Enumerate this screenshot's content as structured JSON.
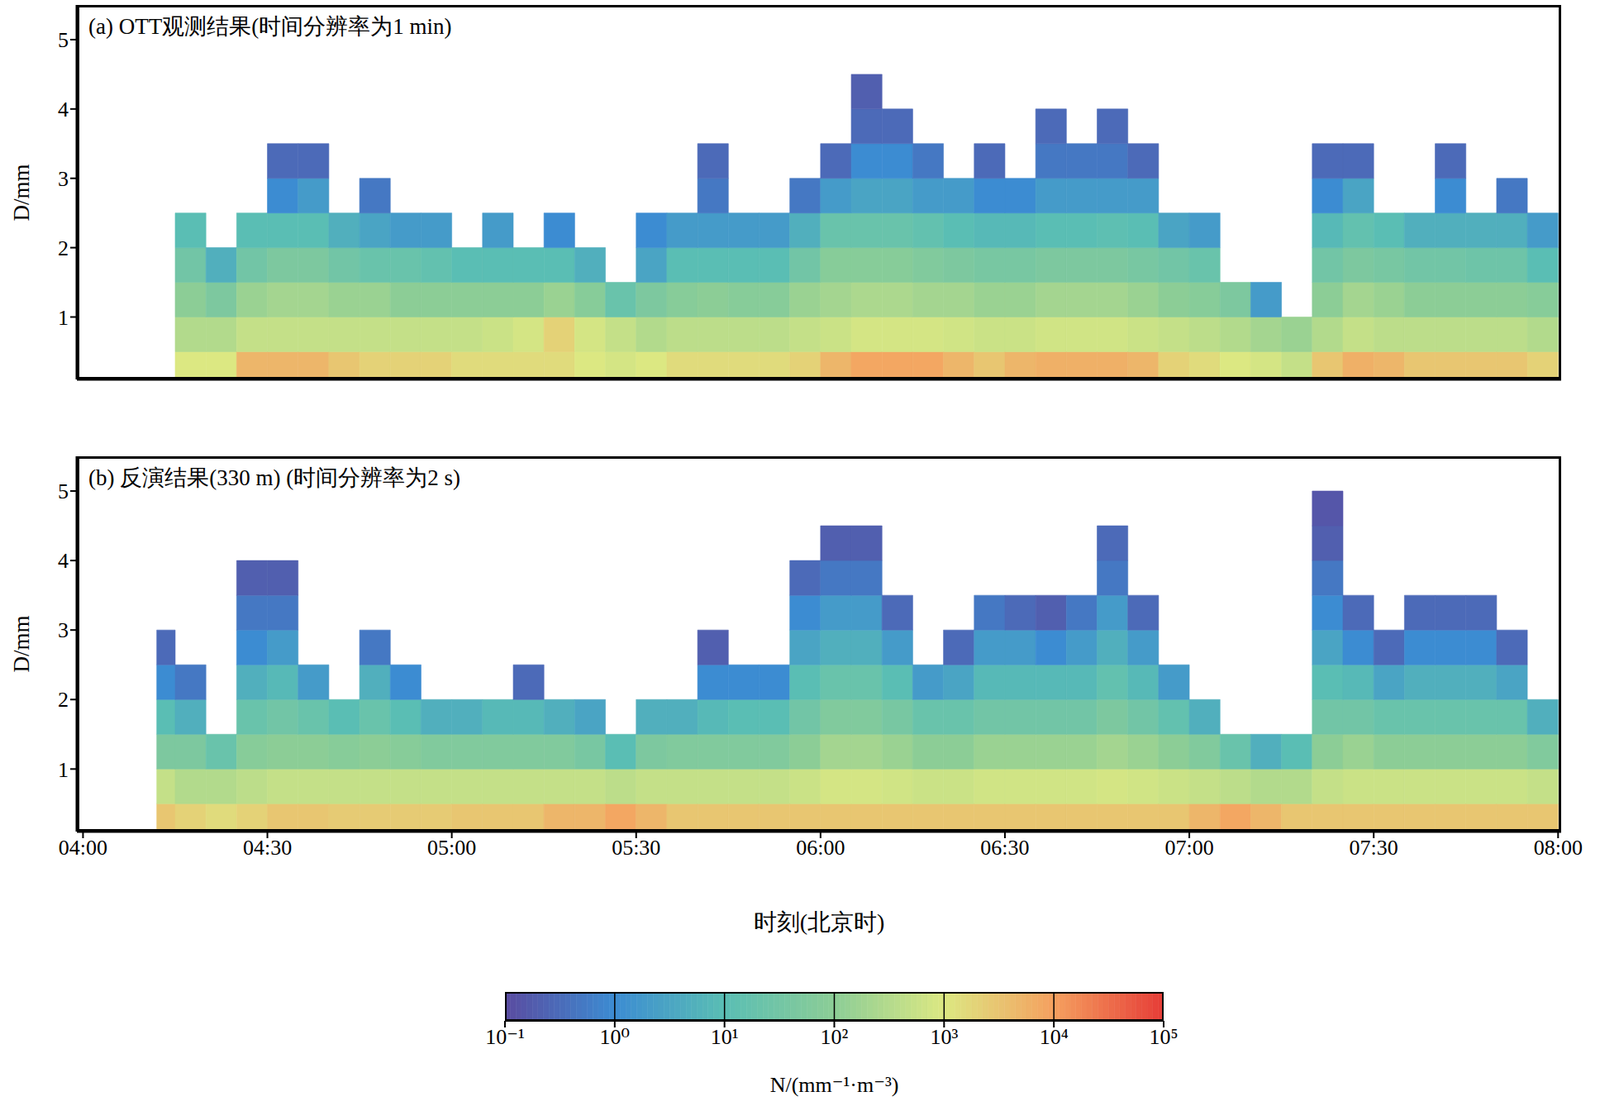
{
  "chart_data": [
    {
      "type": "heatmap",
      "title": "(a) OTT观测结果(时间分辨率为1 min)",
      "ylabel": "D/mm",
      "xlim": [
        -1,
        240.5
      ],
      "ylim": [
        0.1,
        5.5
      ],
      "xticks": [
        0,
        30,
        60,
        90,
        120,
        150,
        180,
        210,
        240
      ],
      "yticks": [
        1,
        2,
        3,
        4,
        5
      ],
      "tick_labels": "y",
      "x_edges": [
        15,
        20,
        25,
        30,
        35,
        40,
        45,
        50,
        55,
        60,
        65,
        70,
        75,
        80,
        85,
        90,
        95,
        100,
        105,
        110,
        115,
        120,
        125,
        130,
        135,
        140,
        145,
        150,
        155,
        160,
        165,
        170,
        175,
        180,
        185,
        190,
        195,
        200,
        205,
        210,
        215,
        220,
        225,
        230,
        235,
        240
      ],
      "y_edges": [
        0.1,
        0.5,
        1,
        1.5,
        2,
        2.5,
        3,
        3.5,
        4,
        4.5,
        5
      ],
      "cells": [
        [
          1000,
          300,
          100,
          30,
          10,
          null,
          null,
          null,
          null,
          null
        ],
        [
          1000,
          300,
          50,
          5,
          null,
          null,
          null,
          null,
          null,
          null
        ],
        [
          5000,
          500,
          150,
          30,
          10,
          null,
          null,
          null,
          null,
          null
        ],
        [
          5000,
          500,
          200,
          50,
          10,
          1,
          0.3,
          null,
          null,
          null
        ],
        [
          5000,
          500,
          200,
          50,
          10,
          2,
          0.3,
          null,
          null,
          null
        ],
        [
          3000,
          500,
          150,
          30,
          5,
          null,
          null,
          null,
          null,
          null
        ],
        [
          2000,
          500,
          150,
          20,
          3,
          0.5,
          null,
          null,
          null,
          null
        ],
        [
          2000,
          500,
          100,
          20,
          2,
          null,
          null,
          null,
          null,
          null
        ],
        [
          2000,
          500,
          100,
          15,
          2,
          null,
          null,
          null,
          null,
          null
        ],
        [
          1500,
          500,
          100,
          10,
          null,
          null,
          null,
          null,
          null,
          null
        ],
        [
          1500,
          600,
          100,
          10,
          2,
          null,
          null,
          null,
          null,
          null
        ],
        [
          1500,
          800,
          100,
          10,
          null,
          null,
          null,
          null,
          null,
          null
        ],
        [
          1500,
          2000,
          150,
          10,
          1,
          null,
          null,
          null,
          null,
          null
        ],
        [
          1000,
          800,
          80,
          5,
          null,
          null,
          null,
          null,
          null,
          null
        ],
        [
          800,
          500,
          20,
          null,
          null,
          null,
          null,
          null,
          null,
          null
        ],
        [
          1000,
          300,
          50,
          3,
          1,
          null,
          null,
          null,
          null,
          null
        ],
        [
          1500,
          400,
          80,
          10,
          2,
          null,
          null,
          null,
          null,
          null
        ],
        [
          1500,
          400,
          100,
          10,
          2,
          0.5,
          0.3,
          null,
          null,
          null
        ],
        [
          1500,
          400,
          80,
          10,
          2,
          null,
          null,
          null,
          null,
          null
        ],
        [
          1500,
          400,
          80,
          10,
          2,
          null,
          null,
          null,
          null,
          null
        ],
        [
          2000,
          500,
          150,
          30,
          5,
          0.5,
          null,
          null,
          null,
          null
        ],
        [
          5000,
          600,
          200,
          80,
          20,
          2,
          0.3,
          null,
          null,
          null
        ],
        [
          8000,
          800,
          250,
          80,
          20,
          3,
          1,
          0.3,
          0.2,
          null
        ],
        [
          8000,
          800,
          250,
          80,
          20,
          3,
          1,
          0.3,
          null,
          null
        ],
        [
          8000,
          800,
          200,
          60,
          15,
          2,
          0.5,
          null,
          null,
          null
        ],
        [
          5000,
          700,
          200,
          50,
          10,
          2,
          null,
          null,
          null,
          null
        ],
        [
          3000,
          600,
          150,
          40,
          8,
          1,
          0.3,
          null,
          null,
          null
        ],
        [
          5000,
          600,
          150,
          40,
          8,
          1,
          null,
          null,
          null,
          null
        ],
        [
          6000,
          700,
          200,
          50,
          10,
          2,
          0.5,
          0.3,
          null,
          null
        ],
        [
          6000,
          700,
          200,
          50,
          10,
          2,
          0.5,
          null,
          null,
          null
        ],
        [
          6000,
          700,
          200,
          50,
          12,
          2,
          0.5,
          0.3,
          null,
          null
        ],
        [
          5000,
          600,
          150,
          40,
          10,
          2,
          0.3,
          null,
          null,
          null
        ],
        [
          2000,
          500,
          100,
          30,
          3,
          null,
          null,
          null,
          null,
          null
        ],
        [
          1500,
          400,
          80,
          20,
          2,
          null,
          null,
          null,
          null,
          null
        ],
        [
          1000,
          300,
          50,
          null,
          null,
          null,
          null,
          null,
          null,
          null
        ],
        [
          800,
          200,
          2,
          null,
          null,
          null,
          null,
          null,
          null,
          null
        ],
        [
          500,
          150,
          null,
          null,
          null,
          null,
          null,
          null,
          null,
          null
        ],
        [
          3000,
          300,
          100,
          30,
          8,
          1,
          0.3,
          null,
          null,
          null
        ],
        [
          6000,
          500,
          200,
          50,
          15,
          3,
          0.3,
          null,
          null,
          null
        ],
        [
          5000,
          400,
          150,
          40,
          10,
          null,
          null,
          null,
          null,
          null
        ],
        [
          3000,
          400,
          100,
          30,
          5,
          null,
          null,
          null,
          null,
          null
        ],
        [
          3000,
          400,
          100,
          30,
          5,
          1,
          0.3,
          null,
          null,
          null
        ],
        [
          3000,
          400,
          100,
          25,
          5,
          null,
          null,
          null,
          null,
          null
        ],
        [
          3000,
          400,
          100,
          25,
          5,
          0.5,
          null,
          null,
          null,
          null
        ],
        [
          2000,
          300,
          80,
          10,
          2,
          null,
          null,
          null,
          null,
          null
        ]
      ]
    },
    {
      "type": "heatmap",
      "title": "(b) 反演结果(330 m) (时间分辨率为2 s)",
      "ylabel": "D/mm",
      "xlabel": "时刻(北京时)",
      "xlim": [
        -1,
        240.5
      ],
      "ylim": [
        0.1,
        5.5
      ],
      "xticks": [
        {
          "value": 0,
          "label": "04:00"
        },
        {
          "value": 30,
          "label": "04:30"
        },
        {
          "value": 60,
          "label": "05:00"
        },
        {
          "value": 90,
          "label": "05:30"
        },
        {
          "value": 120,
          "label": "06:00"
        },
        {
          "value": 150,
          "label": "06:30"
        },
        {
          "value": 180,
          "label": "07:00"
        },
        {
          "value": 210,
          "label": "07:30"
        },
        {
          "value": 240,
          "label": "08:00"
        }
      ],
      "yticks": [
        1,
        2,
        3,
        4,
        5
      ],
      "x_edges": [
        12,
        15,
        20,
        25,
        30,
        35,
        40,
        45,
        50,
        55,
        60,
        65,
        70,
        75,
        80,
        85,
        90,
        95,
        100,
        105,
        110,
        115,
        120,
        125,
        130,
        135,
        140,
        145,
        150,
        155,
        160,
        165,
        170,
        175,
        180,
        185,
        190,
        195,
        200,
        205,
        210,
        215,
        220,
        225,
        230,
        235,
        240
      ],
      "y_edges": [
        0.1,
        0.5,
        1,
        1.5,
        2,
        2.5,
        3,
        3.5,
        4,
        4.5,
        5
      ],
      "cells": [
        [
          3000,
          500,
          50,
          10,
          1,
          0.3,
          null,
          null,
          null,
          null
        ],
        [
          2000,
          300,
          50,
          5,
          0.5,
          null,
          null,
          null,
          null,
          null
        ],
        [
          1500,
          300,
          20,
          null,
          null,
          null,
          null,
          null,
          null,
          null
        ],
        [
          2000,
          400,
          80,
          20,
          5,
          1,
          0.5,
          0.2,
          null,
          null
        ],
        [
          3000,
          500,
          100,
          30,
          8,
          2,
          0.5,
          0.2,
          null,
          null
        ],
        [
          3000,
          500,
          100,
          20,
          2,
          null,
          null,
          null,
          null,
          null
        ],
        [
          2500,
          500,
          80,
          10,
          null,
          null,
          null,
          null,
          null,
          null
        ],
        [
          2500,
          500,
          100,
          20,
          5,
          0.5,
          null,
          null,
          null,
          null
        ],
        [
          2500,
          500,
          80,
          10,
          1,
          null,
          null,
          null,
          null,
          null
        ],
        [
          2500,
          500,
          60,
          5,
          null,
          null,
          null,
          null,
          null,
          null
        ],
        [
          3000,
          500,
          60,
          5,
          null,
          null,
          null,
          null,
          null,
          null
        ],
        [
          3000,
          500,
          60,
          8,
          null,
          null,
          null,
          null,
          null,
          null
        ],
        [
          3000,
          500,
          60,
          8,
          0.3,
          null,
          null,
          null,
          null,
          null
        ],
        [
          5000,
          500,
          60,
          5,
          null,
          null,
          null,
          null,
          null,
          null
        ],
        [
          5000,
          500,
          40,
          3,
          null,
          null,
          null,
          null,
          null,
          null
        ],
        [
          8000,
          400,
          10,
          null,
          null,
          null,
          null,
          null,
          null,
          null
        ],
        [
          5000,
          500,
          50,
          5,
          null,
          null,
          null,
          null,
          null,
          null
        ],
        [
          3000,
          500,
          60,
          5,
          null,
          null,
          null,
          null,
          null,
          null
        ],
        [
          3000,
          500,
          60,
          8,
          1,
          0.2,
          null,
          null,
          null,
          null
        ],
        [
          3000,
          500,
          60,
          10,
          1,
          null,
          null,
          null,
          null,
          null
        ],
        [
          3000,
          500,
          60,
          10,
          1,
          null,
          null,
          null,
          null,
          null
        ],
        [
          3000,
          600,
          100,
          30,
          10,
          3,
          1,
          0.3,
          null,
          null
        ],
        [
          3000,
          800,
          200,
          60,
          20,
          5,
          2,
          0.5,
          0.2,
          null
        ],
        [
          3000,
          800,
          200,
          60,
          20,
          5,
          2,
          0.5,
          0.2,
          null
        ],
        [
          3000,
          700,
          150,
          40,
          10,
          2,
          0.3,
          null,
          null,
          null
        ],
        [
          3000,
          600,
          100,
          20,
          2,
          null,
          null,
          null,
          null,
          null
        ],
        [
          3000,
          600,
          100,
          20,
          3,
          0.3,
          null,
          null,
          null,
          null
        ],
        [
          3000,
          700,
          150,
          30,
          8,
          2,
          0.5,
          null,
          null,
          null
        ],
        [
          3000,
          700,
          150,
          30,
          8,
          2,
          0.3,
          null,
          null,
          null
        ],
        [
          3000,
          700,
          150,
          30,
          8,
          1,
          0.2,
          null,
          null,
          null
        ],
        [
          3000,
          700,
          150,
          30,
          8,
          2,
          0.5,
          null,
          null,
          null
        ],
        [
          3000,
          800,
          200,
          50,
          15,
          5,
          2,
          0.5,
          0.3,
          null
        ],
        [
          3000,
          700,
          150,
          30,
          8,
          2,
          0.3,
          null,
          null,
          null
        ],
        [
          3000,
          600,
          100,
          15,
          2,
          null,
          null,
          null,
          null,
          null
        ],
        [
          5000,
          500,
          60,
          5,
          null,
          null,
          null,
          null,
          null,
          null
        ],
        [
          8000,
          400,
          20,
          null,
          null,
          null,
          null,
          null,
          null,
          null
        ],
        [
          5000,
          300,
          5,
          null,
          null,
          null,
          null,
          null,
          null,
          null
        ],
        [
          3000,
          300,
          10,
          null,
          null,
          null,
          null,
          null,
          null,
          null
        ],
        [
          3000,
          500,
          100,
          30,
          10,
          3,
          1,
          0.5,
          0.2,
          0.15
        ],
        [
          3000,
          600,
          150,
          30,
          8,
          1,
          0.3,
          null,
          null,
          null
        ],
        [
          3000,
          600,
          100,
          20,
          3,
          0.3,
          null,
          null,
          null,
          null
        ],
        [
          3000,
          600,
          100,
          20,
          5,
          1,
          0.3,
          null,
          null,
          null
        ],
        [
          3000,
          600,
          100,
          20,
          5,
          1,
          0.3,
          null,
          null,
          null
        ],
        [
          3000,
          600,
          100,
          20,
          5,
          1,
          0.3,
          null,
          null,
          null
        ],
        [
          3000,
          600,
          100,
          20,
          3,
          0.3,
          null,
          null,
          null,
          null
        ],
        [
          3000,
          500,
          60,
          5,
          null,
          null,
          null,
          null,
          null,
          null
        ]
      ],
      "colorbar": {
        "label": "N/(mm⁻¹·m⁻³)",
        "range": [
          0.1,
          100000
        ],
        "log": true,
        "ticks": [
          {
            "value": 0.1,
            "label": "10⁻¹"
          },
          {
            "value": 1,
            "label": "10⁰"
          },
          {
            "value": 10,
            "label": "10¹"
          },
          {
            "value": 100,
            "label": "10²"
          },
          {
            "value": 1000,
            "label": "10³"
          },
          {
            "value": 10000,
            "label": "10⁴"
          },
          {
            "value": 100000,
            "label": "10⁵"
          }
        ]
      }
    }
  ]
}
